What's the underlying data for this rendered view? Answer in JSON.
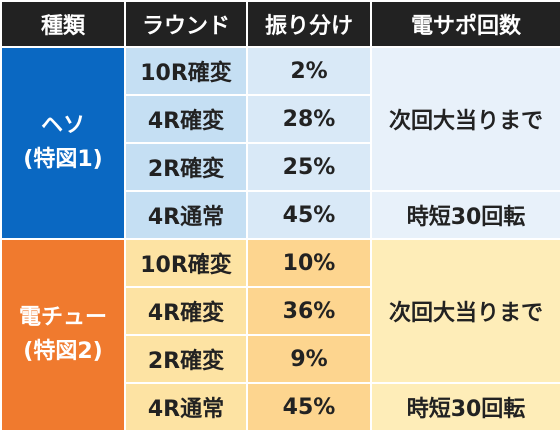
{
  "headers": [
    "種類",
    "ラウンド",
    "振り分け",
    "電サポ回数"
  ],
  "groups": [
    {
      "name": "ヘソ",
      "sub": "(特図1)",
      "rows": [
        {
          "round": "10R確変",
          "share": "2%"
        },
        {
          "round": "4R確変",
          "share": "28%"
        },
        {
          "round": "2R確変",
          "share": "25%"
        },
        {
          "round": "4R通常",
          "share": "45%"
        }
      ],
      "support_main": "次回大当りまで",
      "support_last": "時短30回転"
    },
    {
      "name": "電チュー",
      "sub": "(特図2)",
      "rows": [
        {
          "round": "10R確変",
          "share": "10%"
        },
        {
          "round": "4R確変",
          "share": "36%"
        },
        {
          "round": "2R確変",
          "share": "9%"
        },
        {
          "round": "4R通常",
          "share": "45%"
        }
      ],
      "support_main": "次回大当りまで",
      "support_last": "時短30回転"
    }
  ],
  "colors": {
    "header_bg": "#222222",
    "group1_accent": "#0a68c2",
    "group2_accent": "#f07a2e"
  }
}
